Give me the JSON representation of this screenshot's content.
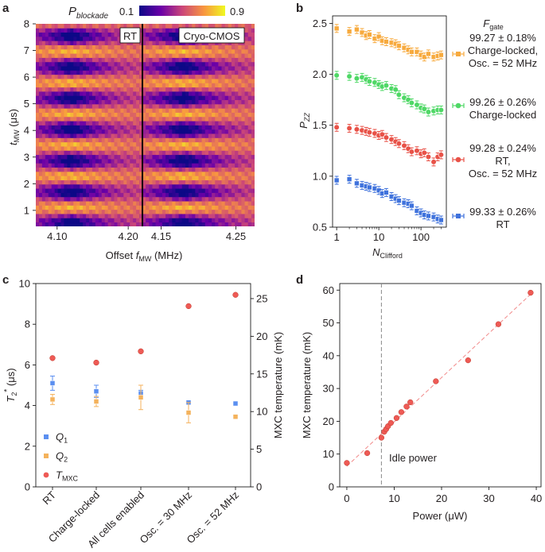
{
  "panels": {
    "a": {
      "label": "a",
      "colorbar": {
        "label": "P",
        "label_sub": "blockade",
        "min_text": "0.1",
        "max_text": "0.9"
      },
      "ylabel": "t",
      "ylabel_sub": "MW",
      "ylabel_unit": " (μs)",
      "xlabel_pre": "Offset ",
      "xlabel_f": "f",
      "xlabel_sub": "MW",
      "xlabel_unit": " (MHz)",
      "yticks": [
        "1",
        "2",
        "3",
        "4",
        "5",
        "6",
        "7",
        "8"
      ],
      "xticks_left": [
        "4.10",
        "4.20"
      ],
      "xticks_right": [
        "4.15",
        "4.25"
      ],
      "tag_left": "RT",
      "tag_right": "Cryo-CMOS"
    },
    "b": {
      "label": "b",
      "legend_title": "F",
      "legend_title_sub": "gate",
      "ylabel": "P",
      "ylabel_sub": "ZZ",
      "xlabel": "N",
      "xlabel_sub": "Clifford",
      "yticks": [
        "0.5",
        "1.0",
        "1.5",
        "2.0",
        "2.5"
      ],
      "xticks": [
        "1",
        "10",
        "100"
      ],
      "legend": [
        {
          "lines": [
            "99.27 ± 0.18%",
            "Charge-locked,",
            "Osc. = 52 MHz"
          ]
        },
        {
          "lines": [
            "99.26 ± 0.26%",
            "Charge-locked"
          ]
        },
        {
          "lines": [
            "99.28 ± 0.24%",
            "RT,",
            "Osc. = 52 MHz"
          ]
        },
        {
          "lines": [
            "99.33 ± 0.26%",
            "RT"
          ]
        }
      ]
    },
    "c": {
      "label": "c",
      "ylabel_left": "T",
      "ylabel_left_sub": "2",
      "ylabel_left_sup": "*",
      "ylabel_left_unit": " (μs)",
      "ylabel_right": "MXC temperature (mK)",
      "yticks_left": [
        "0",
        "2",
        "4",
        "6",
        "8",
        "10"
      ],
      "yticks_right": [
        "0",
        "5",
        "10",
        "15",
        "20",
        "25"
      ],
      "legend": [
        {
          "label": "Q",
          "sub": "1"
        },
        {
          "label": "Q",
          "sub": "2"
        },
        {
          "label": "T",
          "sub": "MXC"
        }
      ]
    },
    "d": {
      "label": "d",
      "xlabel": "Power (μW)",
      "ylabel": "MXC temperature (mK)",
      "xticks": [
        "0",
        "10",
        "20",
        "30",
        "40"
      ],
      "yticks": [
        "0",
        "10",
        "20",
        "30",
        "40",
        "50",
        "60"
      ],
      "idle_label": "Idle power"
    }
  },
  "colors": {
    "q1": "#5b8ff0",
    "q2": "#f4b25c",
    "tmxc": "#ee5a55",
    "b_series": [
      "#f7aa3e",
      "#4fd866",
      "#e85248",
      "#3f72dc"
    ],
    "fit_d": "#f28a8a",
    "idle_line": "#888888"
  },
  "chart_data": [
    {
      "panel": "a",
      "type": "heatmap",
      "colormap": "plasma",
      "x_left_range": [
        4.07,
        4.22
      ],
      "x_right_range": [
        4.125,
        4.275
      ],
      "ylim": [
        0.4,
        8.0
      ],
      "value_range": [
        0.1,
        0.9
      ]
    },
    {
      "panel": "b",
      "type": "scatter",
      "x_scale": "log",
      "xlim": [
        0.8,
        400
      ],
      "ylim": [
        0.5,
        2.55
      ],
      "x": [
        1,
        2,
        3,
        4,
        5,
        6,
        8,
        10,
        12,
        15,
        20,
        25,
        30,
        40,
        50,
        60,
        80,
        100,
        120,
        150,
        200,
        250,
        300
      ],
      "series": [
        {
          "values": [
            2.45,
            2.42,
            2.44,
            2.41,
            2.38,
            2.39,
            2.35,
            2.37,
            2.33,
            2.32,
            2.31,
            2.3,
            2.28,
            2.26,
            2.24,
            2.22,
            2.22,
            2.19,
            2.17,
            2.2,
            2.17,
            2.18,
            2.19
          ]
        },
        {
          "values": [
            1.99,
            1.98,
            1.96,
            1.97,
            1.95,
            1.93,
            1.92,
            1.9,
            1.88,
            1.89,
            1.86,
            1.85,
            1.8,
            1.77,
            1.75,
            1.72,
            1.7,
            1.67,
            1.66,
            1.63,
            1.64,
            1.65,
            1.65
          ]
        },
        {
          "values": [
            1.48,
            1.47,
            1.46,
            1.45,
            1.44,
            1.43,
            1.42,
            1.4,
            1.41,
            1.38,
            1.36,
            1.34,
            1.32,
            1.3,
            1.27,
            1.24,
            1.25,
            1.22,
            1.23,
            1.19,
            1.14,
            1.19,
            1.21
          ]
        },
        {
          "values": [
            0.96,
            0.97,
            0.93,
            0.91,
            0.9,
            0.89,
            0.88,
            0.86,
            0.83,
            0.84,
            0.8,
            0.78,
            0.76,
            0.74,
            0.73,
            0.71,
            0.66,
            0.64,
            0.62,
            0.61,
            0.6,
            0.58,
            0.57
          ]
        }
      ]
    },
    {
      "panel": "c",
      "type": "scatter",
      "categories": [
        "RT",
        "Charge-locked",
        "All cells enabled",
        "Osc. = 30 MHz",
        "Osc. = 52 MHz"
      ],
      "ylim_left": [
        0,
        10
      ],
      "ylim_right": [
        0,
        27
      ],
      "series": [
        {
          "name": "Q1",
          "values": [
            5.1,
            4.7,
            4.6,
            4.15,
            4.1
          ],
          "errors": [
            0.35,
            0.3,
            0.15,
            0.1,
            0.1
          ]
        },
        {
          "name": "Q2",
          "values": [
            4.3,
            4.2,
            4.4,
            3.65,
            3.45
          ],
          "errors": [
            0.25,
            0.25,
            0.6,
            0.5,
            0.05
          ]
        },
        {
          "name": "TMXC",
          "axis": "right",
          "values": [
            17.1,
            16.5,
            18.0,
            24.0,
            25.5
          ]
        }
      ]
    },
    {
      "panel": "d",
      "type": "scatter",
      "xlabel": "Power (μW)",
      "ylabel": "MXC temperature (mK)",
      "xlim": [
        -1.5,
        41
      ],
      "ylim": [
        0,
        62
      ],
      "x": [
        0,
        4.3,
        7.3,
        7.9,
        8.3,
        8.7,
        9.3,
        10.5,
        11.5,
        12.6,
        13.4,
        18.8,
        25.6,
        32.0,
        38.8
      ],
      "values": [
        7.3,
        10.3,
        15.0,
        16.8,
        17.6,
        18.5,
        19.5,
        21.0,
        22.8,
        24.5,
        25.8,
        32.2,
        38.6,
        49.6,
        59.2
      ],
      "fit": {
        "x": [
          0,
          39
        ],
        "y": [
          6.3,
          59.0
        ]
      },
      "idle_power_x": 7.3
    }
  ]
}
